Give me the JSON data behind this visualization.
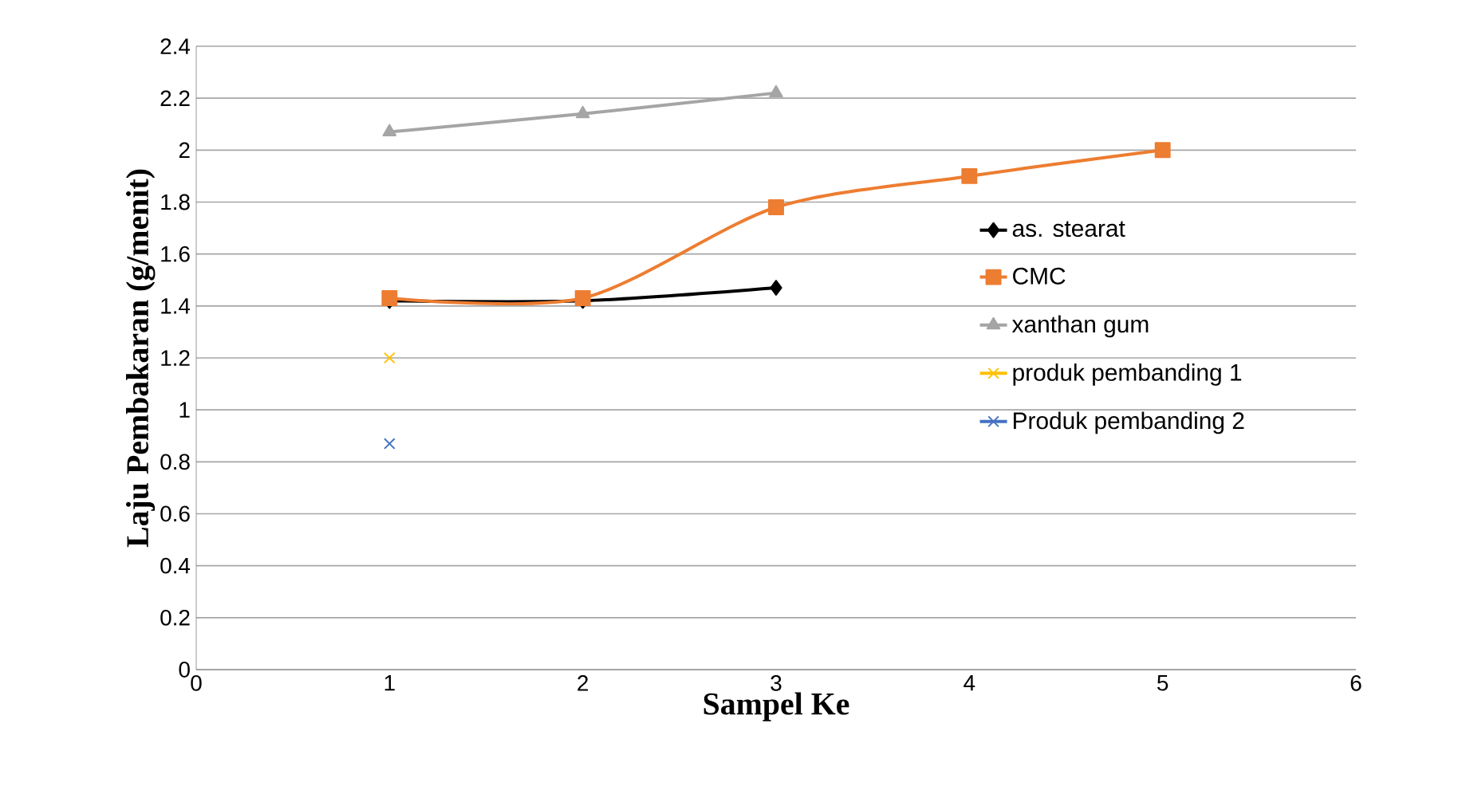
{
  "chart_data": {
    "type": "line",
    "xlabel": "Sampel Ke",
    "ylabel": "Laju Pembakaran (g/menit)",
    "xlim": [
      0,
      6
    ],
    "xticks": [
      0,
      1,
      2,
      3,
      4,
      5,
      6
    ],
    "ylim": [
      0,
      2.4
    ],
    "yticks": [
      0,
      0.2,
      0.4,
      0.6,
      0.8,
      1,
      1.2,
      1.4,
      1.6,
      1.8,
      2,
      2.2,
      2.4
    ],
    "grid": "y",
    "legend": "right",
    "series": [
      {
        "name": "as. stearat",
        "color": "#000000",
        "marker": "diamond",
        "x": [
          1,
          2,
          3
        ],
        "values": [
          1.42,
          1.42,
          1.47
        ]
      },
      {
        "name": "CMC",
        "color": "#ed7d31",
        "marker": "square",
        "x": [
          1,
          2,
          3,
          4,
          5
        ],
        "values": [
          1.43,
          1.43,
          1.78,
          1.9,
          2.0
        ]
      },
      {
        "name": "xanthan gum",
        "color": "#a5a5a5",
        "marker": "triangle",
        "x": [
          1,
          2,
          3
        ],
        "values": [
          2.07,
          2.14,
          2.22
        ]
      },
      {
        "name": "produk pembanding 1",
        "color": "#ffc000",
        "marker": "cross",
        "x": [
          1
        ],
        "values": [
          1.2
        ]
      },
      {
        "name": "Produk pembanding 2",
        "color": "#4472c4",
        "marker": "cross",
        "x": [
          1
        ],
        "values": [
          0.87
        ]
      }
    ]
  }
}
